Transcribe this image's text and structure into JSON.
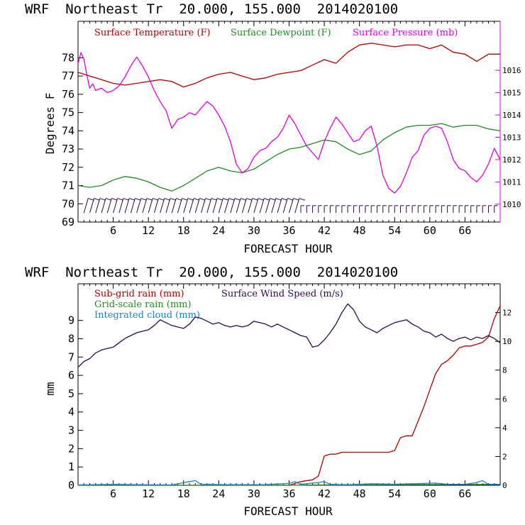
{
  "colors": {
    "temperature": "#b00000",
    "dewpoint": "#228b22",
    "pressure": "#e000e0",
    "subgrid_rain": "#b00000",
    "gridscale_rain": "#228b22",
    "cloud": "#1e7fd0",
    "wind": "#2b0a4a",
    "axis_right_top": "#e000e0"
  },
  "chart_data": [
    {
      "type": "line",
      "title": "WRF  Northeast Tr  20.000, 155.000  2014020100",
      "xlabel": "FORECAST HOUR",
      "ylabel": "Degrees F",
      "xlim": [
        0,
        72
      ],
      "ylim": [
        69,
        80
      ],
      "y2lim": [
        1009.2,
        1018.2
      ],
      "xticks": [
        6,
        12,
        18,
        24,
        30,
        36,
        42,
        48,
        54,
        60,
        66
      ],
      "xtick_labels": [
        "6",
        "12",
        "18",
        "24",
        "30",
        "36",
        "42",
        "48",
        "54",
        "60",
        "66"
      ],
      "yticks": [
        69,
        70,
        71,
        72,
        73,
        74,
        75,
        76,
        77,
        78
      ],
      "ytick_labels": [
        "69",
        "70",
        "71",
        "72",
        "73",
        "74",
        "75",
        "76",
        "77",
        "78"
      ],
      "y2ticks": [
        1010,
        1011,
        1012,
        1013,
        1014,
        1015,
        1016
      ],
      "y2tick_labels": [
        "1010",
        "1011",
        "1012",
        "1013",
        "1014",
        "1015",
        "1016"
      ],
      "grid": false,
      "legend": [
        "Surface Temperature (F)",
        "Surface Dewpoint (F)",
        "Surface Pressure (mb)"
      ],
      "legend_position": "top",
      "series": [
        {
          "name": "Surface Temperature (F)",
          "axis": "left",
          "x": [
            0,
            2,
            4,
            6,
            8,
            10,
            12,
            14,
            16,
            18,
            20,
            22,
            24,
            26,
            28,
            30,
            32,
            34,
            36,
            38,
            40,
            42,
            44,
            46,
            48,
            50,
            52,
            54,
            56,
            58,
            60,
            62,
            64,
            66,
            68,
            70,
            72
          ],
          "values": [
            77.2,
            77.0,
            76.8,
            76.6,
            76.5,
            76.6,
            76.7,
            76.8,
            76.7,
            76.4,
            76.6,
            76.9,
            77.1,
            77.2,
            77.0,
            76.8,
            76.9,
            77.1,
            77.2,
            77.3,
            77.6,
            77.9,
            77.7,
            78.3,
            78.7,
            78.8,
            78.7,
            78.6,
            78.7,
            78.7,
            78.5,
            78.7,
            78.3,
            78.2,
            77.8,
            78.2,
            78.2
          ]
        },
        {
          "name": "Surface Dewpoint (F)",
          "axis": "left",
          "x": [
            0,
            2,
            4,
            6,
            8,
            10,
            12,
            14,
            16,
            18,
            20,
            22,
            24,
            26,
            28,
            30,
            32,
            34,
            36,
            38,
            40,
            42,
            44,
            46,
            48,
            50,
            52,
            54,
            56,
            58,
            60,
            62,
            64,
            66,
            68,
            70,
            72
          ],
          "values": [
            71.0,
            70.9,
            71.0,
            71.3,
            71.5,
            71.4,
            71.2,
            70.9,
            70.7,
            71.0,
            71.4,
            71.8,
            72.0,
            71.8,
            71.7,
            71.9,
            72.3,
            72.7,
            73.0,
            73.1,
            73.3,
            73.5,
            73.4,
            73.0,
            72.7,
            72.9,
            73.5,
            73.9,
            74.2,
            74.3,
            74.3,
            74.4,
            74.2,
            74.3,
            74.3,
            74.1,
            74.0
          ]
        },
        {
          "name": "Surface Pressure (mb)",
          "axis": "right",
          "x": [
            0,
            0.5,
            1,
            1.5,
            2,
            2.5,
            3,
            4,
            5,
            6,
            7,
            8,
            9,
            10,
            11,
            12,
            13,
            14,
            15,
            16,
            17,
            18,
            19,
            20,
            21,
            22,
            23,
            24,
            25,
            26,
            27,
            28,
            29,
            30,
            31,
            32,
            33,
            34,
            35,
            36,
            37,
            38,
            39,
            40,
            41,
            42,
            43,
            44,
            45,
            46,
            47,
            48,
            49,
            50,
            51,
            52,
            53,
            54,
            55,
            56,
            57,
            58,
            59,
            60,
            61,
            62,
            63,
            64,
            65,
            66,
            67,
            68,
            69,
            70,
            71,
            72
          ],
          "values": [
            1016.3,
            1016.8,
            1016.5,
            1015.8,
            1015.2,
            1015.4,
            1015.1,
            1015.2,
            1015.0,
            1015.1,
            1015.3,
            1015.7,
            1016.2,
            1016.6,
            1016.2,
            1015.7,
            1015.1,
            1014.6,
            1014.2,
            1013.4,
            1013.8,
            1013.9,
            1014.1,
            1014.0,
            1014.3,
            1014.6,
            1014.4,
            1014.0,
            1013.5,
            1012.8,
            1011.8,
            1011.4,
            1011.6,
            1012.1,
            1012.4,
            1012.5,
            1012.8,
            1013.0,
            1013.4,
            1014.0,
            1013.6,
            1013.1,
            1012.6,
            1012.3,
            1012.0,
            1012.8,
            1013.4,
            1013.9,
            1013.6,
            1013.2,
            1012.8,
            1012.9,
            1013.3,
            1013.5,
            1012.6,
            1011.3,
            1010.7,
            1010.5,
            1010.8,
            1011.4,
            1012.1,
            1012.4,
            1013.1,
            1013.4,
            1013.5,
            1013.4,
            1012.8,
            1012.0,
            1011.6,
            1011.5,
            1011.2,
            1011.0,
            1011.3,
            1011.8,
            1012.5,
            1012.0
          ]
        }
      ],
      "wind_barbs_present": true
    },
    {
      "type": "line",
      "title": "WRF  Northeast Tr  20.000, 155.000  2014020100",
      "xlabel": "FORECAST HOUR",
      "ylabel": "mm",
      "xlim": [
        0,
        72
      ],
      "ylim": [
        0,
        11
      ],
      "y2lim": [
        0,
        14
      ],
      "xticks": [
        6,
        12,
        18,
        24,
        30,
        36,
        42,
        48,
        54,
        60,
        66
      ],
      "xtick_labels": [
        "6",
        "12",
        "18",
        "24",
        "30",
        "36",
        "42",
        "48",
        "54",
        "60",
        "66"
      ],
      "yticks": [
        0,
        1,
        2,
        3,
        4,
        5,
        6,
        7,
        8,
        9
      ],
      "ytick_labels": [
        "0",
        "1",
        "2",
        "3",
        "4",
        "5",
        "6",
        "7",
        "8",
        "9"
      ],
      "y2ticks": [
        0,
        2,
        4,
        6,
        8,
        10,
        12
      ],
      "y2tick_labels": [
        "0",
        "2",
        "4",
        "6",
        "8",
        "10",
        "12"
      ],
      "grid": false,
      "legend": [
        "Sub-grid rain (mm)",
        "Grid-scale rain (mm)",
        "Integrated cloud (mm)",
        "Surface Wind Speed (m/s)"
      ],
      "legend_position": "top-left",
      "series": [
        {
          "name": "Sub-grid rain (mm)",
          "axis": "left",
          "x": [
            0,
            30,
            36,
            38,
            40,
            41,
            42,
            43,
            44,
            45,
            46,
            47,
            48,
            49,
            50,
            51,
            52,
            53,
            54,
            55,
            56,
            57,
            58,
            59,
            60,
            61,
            62,
            63,
            64,
            65,
            66,
            67,
            68,
            69,
            70,
            71,
            72
          ],
          "values": [
            0,
            0,
            0,
            0.2,
            0.3,
            0.5,
            1.6,
            1.7,
            1.7,
            1.8,
            1.8,
            1.8,
            1.8,
            1.8,
            1.8,
            1.8,
            1.8,
            1.8,
            1.9,
            2.6,
            2.7,
            2.7,
            3.5,
            4.3,
            5.2,
            6.1,
            6.6,
            6.8,
            7.1,
            7.5,
            7.6,
            7.6,
            7.7,
            7.8,
            8.1,
            9.1,
            9.8
          ]
        },
        {
          "name": "Grid-scale rain (mm)",
          "axis": "left",
          "x": [
            0,
            36,
            40,
            72
          ],
          "values": [
            0,
            0,
            0.02,
            0.05
          ]
        },
        {
          "name": "Integrated cloud (mm)",
          "axis": "left",
          "x": [
            0,
            6,
            10,
            16,
            19,
            20,
            21,
            26,
            32,
            36,
            37,
            38,
            41,
            42,
            43,
            46,
            50,
            54,
            57,
            59,
            61,
            63,
            66,
            68,
            69,
            70,
            72
          ],
          "values": [
            0.02,
            0.05,
            0.03,
            0.02,
            0.2,
            0.25,
            0.05,
            0.03,
            0.04,
            0.1,
            0.2,
            0.05,
            0.15,
            0.2,
            0.05,
            0.03,
            0.08,
            0.06,
            0.08,
            0.1,
            0.12,
            0.05,
            0.05,
            0.15,
            0.25,
            0.05,
            0.05
          ]
        },
        {
          "name": "Surface Wind Speed (m/s)",
          "axis": "right",
          "x": [
            0,
            1,
            2,
            3,
            4,
            5,
            6,
            7,
            8,
            9,
            10,
            11,
            12,
            13,
            14,
            15,
            16,
            17,
            18,
            19,
            20,
            21,
            22,
            23,
            24,
            25,
            26,
            27,
            28,
            29,
            30,
            31,
            32,
            33,
            34,
            35,
            36,
            37,
            38,
            39,
            40,
            41,
            42,
            43,
            44,
            45,
            46,
            47,
            48,
            49,
            50,
            51,
            52,
            53,
            54,
            55,
            56,
            57,
            58,
            59,
            60,
            61,
            62,
            63,
            64,
            65,
            66,
            67,
            68,
            69,
            70,
            71,
            72
          ],
          "values": [
            8.2,
            8.6,
            8.8,
            9.2,
            9.4,
            9.5,
            9.6,
            9.9,
            10.2,
            10.4,
            10.6,
            10.7,
            10.8,
            11.1,
            11.5,
            11.3,
            11.1,
            11.0,
            10.9,
            11.2,
            11.7,
            11.6,
            11.4,
            11.2,
            11.3,
            11.1,
            11.0,
            11.1,
            11.0,
            11.1,
            11.4,
            11.3,
            11.2,
            11.0,
            11.2,
            11.0,
            10.8,
            10.6,
            10.4,
            10.3,
            9.6,
            9.7,
            10.1,
            10.6,
            11.2,
            12.0,
            12.6,
            12.2,
            11.4,
            11.0,
            10.8,
            10.6,
            10.9,
            11.1,
            11.3,
            11.4,
            11.5,
            11.2,
            11.0,
            10.7,
            10.6,
            10.3,
            10.5,
            10.2,
            10.0,
            10.2,
            10.3,
            10.1,
            10.3,
            10.2,
            10.4,
            10.2,
            9.9
          ]
        }
      ]
    }
  ]
}
